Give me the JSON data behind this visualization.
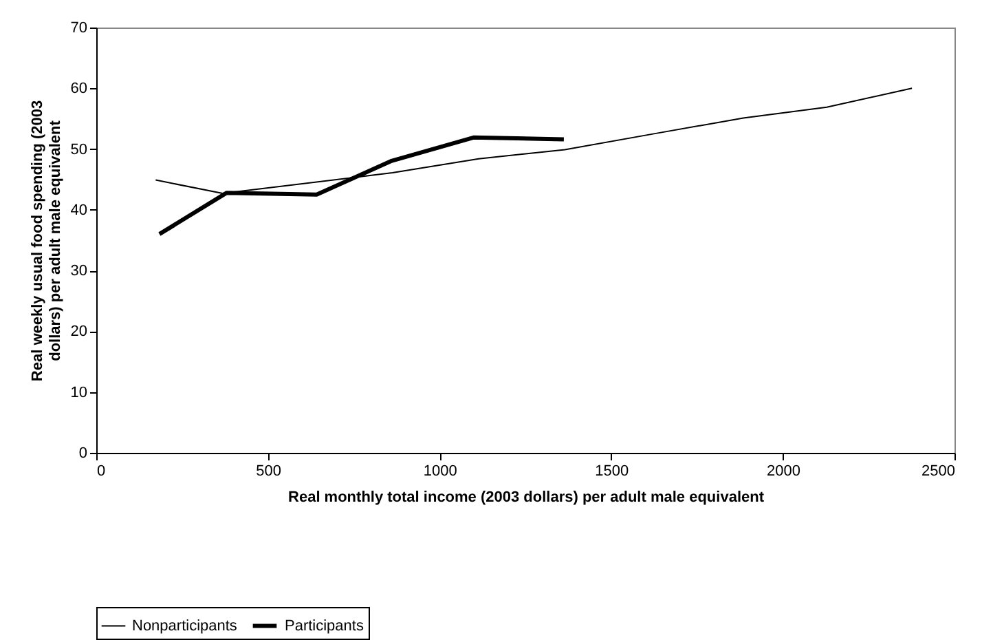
{
  "chart_data": {
    "type": "line",
    "xlabel": "Real monthly total income (2003 dollars) per adult male equivalent",
    "ylabel": "Real weekly usual food spending (2003 dollars) per adult male equivalent",
    "xlim": [
      0,
      2500
    ],
    "xticks": [
      0,
      500,
      1000,
      1500,
      2000,
      2500
    ],
    "ylim": [
      0,
      70
    ],
    "yticks": [
      0,
      10,
      20,
      30,
      40,
      50,
      60,
      70
    ],
    "grid": false,
    "legend": "bottom",
    "marker": "none",
    "line_style": "solid",
    "series": [
      {
        "name": "Nonparticipants",
        "color": "#000000",
        "x": [
          173,
          368,
          863,
          1114,
          1365,
          1633,
          1885,
          2128,
          2376
        ],
        "values": [
          44.9,
          42.7,
          46.1,
          48.4,
          49.9,
          52.6,
          55.1,
          56.9,
          60.0
        ]
      },
      {
        "name": "Participants",
        "color": "#000000",
        "x": [
          184,
          380,
          642,
          858,
          1099,
          1362
        ],
        "values": [
          36.0,
          42.8,
          42.5,
          48.0,
          51.9,
          51.6
        ]
      }
    ]
  }
}
